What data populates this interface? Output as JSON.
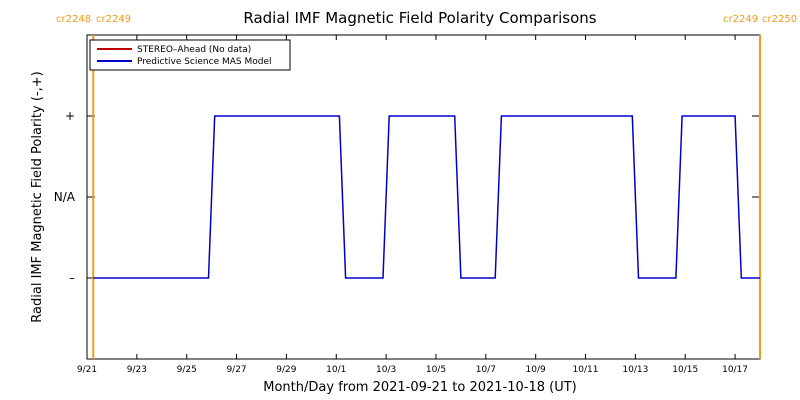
{
  "colors": {
    "stereo": "#c00000",
    "model": "#0000cc",
    "cr_marker": "#f59a1a",
    "axis": "#000000"
  },
  "cr_labels": {
    "left_a": "cr2248",
    "left_b": "cr2249",
    "right_a": "cr2249",
    "right_b": "cr2250"
  },
  "chart_data": {
    "type": "line",
    "title": "Radial IMF Magnetic Field Polarity Comparisons",
    "xlabel": "Month/Day from 2021-09-21 to 2021-10-18 (UT)",
    "ylabel": "Radial IMF Magnetic Field Polarity (-,+)",
    "xlim": [
      "2021-09-21",
      "2021-10-18"
    ],
    "ylim": [
      -2,
      2
    ],
    "x_ticks": [
      "2021-09-21",
      "2021-09-23",
      "2021-09-25",
      "2021-09-27",
      "2021-09-29",
      "2021-10-01",
      "2021-10-03",
      "2021-10-05",
      "2021-10-07",
      "2021-10-09",
      "2021-10-11",
      "2021-10-13",
      "2021-10-15",
      "2021-10-17"
    ],
    "x_tick_labels": [
      "9/21",
      "9/23",
      "9/25",
      "9/27",
      "9/29",
      "10/1",
      "10/3",
      "10/5",
      "10/7",
      "10/9",
      "10/11",
      "10/13",
      "10/15",
      "10/17"
    ],
    "y_ticks": [
      -1,
      0,
      1
    ],
    "y_tick_labels": [
      "–",
      "N/A",
      "+"
    ],
    "legend": {
      "position": "top-left",
      "entries": [
        "STEREO–Ahead (No data)",
        "Predictive Science MAS Model"
      ]
    },
    "cr_boundaries": [
      "2021-09-21T06:00",
      "2021-10-18T00:00"
    ],
    "series": [
      {
        "name": "Predictive Science MAS Model",
        "color": "#0000cc",
        "x": [
          "2021-09-21T06:00",
          "2021-09-25T21:00",
          "2021-09-26T03:00",
          "2021-10-01T03:00",
          "2021-10-01T09:00",
          "2021-10-02T21:00",
          "2021-10-03T03:00",
          "2021-10-05T18:00",
          "2021-10-06T00:00",
          "2021-10-07T09:00",
          "2021-10-07T15:00",
          "2021-10-12T21:00",
          "2021-10-13T03:00",
          "2021-10-14T15:00",
          "2021-10-14T21:00",
          "2021-10-17T00:00",
          "2021-10-17T06:00",
          "2021-10-18T00:00"
        ],
        "y": [
          -1,
          -1,
          1,
          1,
          -1,
          -1,
          1,
          1,
          -1,
          -1,
          1,
          1,
          -1,
          -1,
          1,
          1,
          -1,
          -1
        ]
      },
      {
        "name": "STEREO–Ahead (No data)",
        "color": "#c00000",
        "x": [],
        "y": []
      }
    ]
  }
}
